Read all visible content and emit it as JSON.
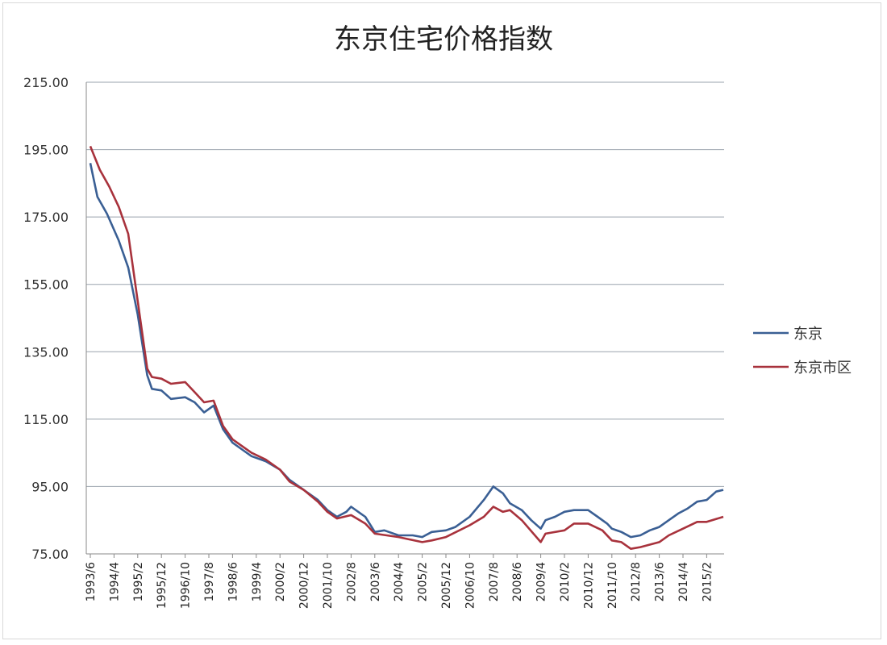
{
  "chart_data": {
    "type": "line",
    "title": "东京住宅价格指数",
    "xlabel": "",
    "ylabel": "",
    "ylim": [
      75,
      215
    ],
    "yticks": [
      "215.00",
      "195.00",
      "175.00",
      "155.00",
      "135.00",
      "115.00",
      "95.00",
      "75.00"
    ],
    "xticks": [
      "1993/6",
      "1994/4",
      "1995/2",
      "1995/12",
      "1996/10",
      "1997/8",
      "1998/6",
      "1999/4",
      "2000/2",
      "2000/12",
      "2001/10",
      "2002/8",
      "2003/6",
      "2004/4",
      "2005/2",
      "2005/12",
      "2006/10",
      "2007/8",
      "2008/6",
      "2009/4",
      "2010/2",
      "2010/12",
      "2011/10",
      "2012/8",
      "2013/6",
      "2014/4",
      "2015/2"
    ],
    "grid": true,
    "legend_position": "right",
    "series": [
      {
        "name": "东京",
        "color": "#3a5f94",
        "points": [
          [
            "1993/6",
            191
          ],
          [
            "1993/9",
            181
          ],
          [
            "1994/1",
            176
          ],
          [
            "1994/6",
            168
          ],
          [
            "1994/10",
            160
          ],
          [
            "1995/2",
            146
          ],
          [
            "1995/6",
            128
          ],
          [
            "1995/8",
            124
          ],
          [
            "1995/12",
            123.5
          ],
          [
            "1996/4",
            121
          ],
          [
            "1996/10",
            121.5
          ],
          [
            "1997/2",
            120
          ],
          [
            "1997/6",
            117
          ],
          [
            "1997/10",
            119
          ],
          [
            "1998/2",
            112
          ],
          [
            "1998/6",
            108
          ],
          [
            "1998/10",
            106
          ],
          [
            "1999/2",
            104
          ],
          [
            "1999/8",
            102.5
          ],
          [
            "2000/2",
            100
          ],
          [
            "2000/6",
            97
          ],
          [
            "2000/12",
            94
          ],
          [
            "2001/6",
            91
          ],
          [
            "2001/10",
            88
          ],
          [
            "2002/2",
            86
          ],
          [
            "2002/6",
            87.5
          ],
          [
            "2002/8",
            89
          ],
          [
            "2002/12",
            87
          ],
          [
            "2003/2",
            86
          ],
          [
            "2003/6",
            81.5
          ],
          [
            "2003/10",
            82
          ],
          [
            "2004/4",
            80.5
          ],
          [
            "2004/10",
            80.5
          ],
          [
            "2005/2",
            80
          ],
          [
            "2005/6",
            81.5
          ],
          [
            "2005/12",
            82
          ],
          [
            "2006/4",
            83
          ],
          [
            "2006/10",
            86
          ],
          [
            "2007/4",
            91
          ],
          [
            "2007/8",
            95
          ],
          [
            "2007/12",
            93
          ],
          [
            "2008/3",
            90
          ],
          [
            "2008/8",
            88
          ],
          [
            "2008/12",
            85
          ],
          [
            "2009/4",
            82.5
          ],
          [
            "2009/6",
            85
          ],
          [
            "2009/10",
            86
          ],
          [
            "2010/2",
            87.5
          ],
          [
            "2010/6",
            88
          ],
          [
            "2010/12",
            88
          ],
          [
            "2011/4",
            86
          ],
          [
            "2011/8",
            84
          ],
          [
            "2011/10",
            82.5
          ],
          [
            "2012/2",
            81.5
          ],
          [
            "2012/6",
            80
          ],
          [
            "2012/10",
            80.5
          ],
          [
            "2013/2",
            82
          ],
          [
            "2013/6",
            83
          ],
          [
            "2013/10",
            85
          ],
          [
            "2014/2",
            87
          ],
          [
            "2014/6",
            88.5
          ],
          [
            "2014/10",
            90.5
          ],
          [
            "2015/2",
            91
          ],
          [
            "2015/6",
            93.5
          ],
          [
            "2015/9",
            94
          ]
        ]
      },
      {
        "name": "东京市区",
        "color": "#a8323c",
        "points": [
          [
            "1993/6",
            196
          ],
          [
            "1993/10",
            189
          ],
          [
            "1994/2",
            184
          ],
          [
            "1994/6",
            178
          ],
          [
            "1994/10",
            170
          ],
          [
            "1995/2",
            150
          ],
          [
            "1995/6",
            130
          ],
          [
            "1995/8",
            127.5
          ],
          [
            "1995/12",
            127
          ],
          [
            "1996/4",
            125.5
          ],
          [
            "1996/10",
            126
          ],
          [
            "1997/2",
            123
          ],
          [
            "1997/6",
            120
          ],
          [
            "1997/10",
            120.5
          ],
          [
            "1998/2",
            113
          ],
          [
            "1998/6",
            109
          ],
          [
            "1998/10",
            107
          ],
          [
            "1999/2",
            105
          ],
          [
            "1999/8",
            103
          ],
          [
            "2000/2",
            100
          ],
          [
            "2000/6",
            96.5
          ],
          [
            "2000/12",
            94
          ],
          [
            "2001/6",
            90.5
          ],
          [
            "2001/10",
            87.5
          ],
          [
            "2002/2",
            85.5
          ],
          [
            "2002/8",
            86.5
          ],
          [
            "2003/2",
            84
          ],
          [
            "2003/6",
            81
          ],
          [
            "2004/4",
            80
          ],
          [
            "2005/2",
            78.5
          ],
          [
            "2005/6",
            79
          ],
          [
            "2005/12",
            80
          ],
          [
            "2006/10",
            83.5
          ],
          [
            "2007/4",
            86
          ],
          [
            "2007/8",
            89
          ],
          [
            "2007/12",
            87.5
          ],
          [
            "2008/3",
            88
          ],
          [
            "2008/8",
            85
          ],
          [
            "2009/4",
            78.5
          ],
          [
            "2009/6",
            81
          ],
          [
            "2010/2",
            82
          ],
          [
            "2010/6",
            84
          ],
          [
            "2010/12",
            84
          ],
          [
            "2011/6",
            82
          ],
          [
            "2011/10",
            79
          ],
          [
            "2012/2",
            78.5
          ],
          [
            "2012/6",
            76.5
          ],
          [
            "2012/10",
            77
          ],
          [
            "2013/6",
            78.5
          ],
          [
            "2013/10",
            80.5
          ],
          [
            "2014/4",
            82.5
          ],
          [
            "2014/10",
            84.5
          ],
          [
            "2015/2",
            84.5
          ],
          [
            "2015/9",
            86
          ]
        ]
      }
    ]
  }
}
